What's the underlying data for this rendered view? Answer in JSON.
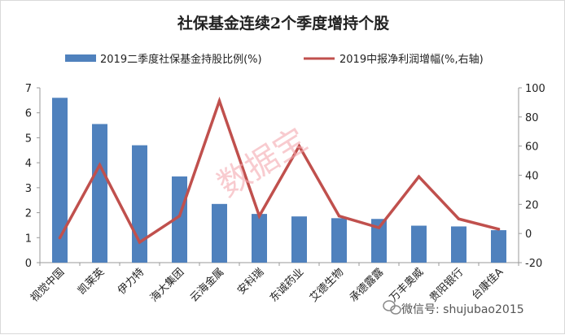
{
  "chart_data": {
    "type": "bar+line",
    "title": "社保基金连续2个季度增持个股",
    "categories": [
      "视觉中国",
      "凯莱英",
      "伊力特",
      "海大集团",
      "云海金属",
      "安科瑞",
      "东诚药业",
      "艾德生物",
      "承德露露",
      "万丰奥威",
      "贵阳银行",
      "台康佳A"
    ],
    "series": [
      {
        "name": "2019二季度社保基金持股比例(%)",
        "type": "bar",
        "axis": "left",
        "color": "#4f81bd",
        "values": [
          6.6,
          5.55,
          4.7,
          3.45,
          2.35,
          1.95,
          1.85,
          1.78,
          1.75,
          1.48,
          1.45,
          1.3
        ]
      },
      {
        "name": "2019中报净利润增幅(%,右轴)",
        "type": "line",
        "axis": "right",
        "color": "#c0504d",
        "values": [
          -3,
          47,
          -6,
          12,
          91,
          12,
          60,
          12,
          4,
          39,
          10,
          3
        ]
      }
    ],
    "y_left": {
      "min": 0,
      "max": 7,
      "ticks": [
        0,
        1,
        2,
        3,
        4,
        5,
        6,
        7
      ]
    },
    "y_right": {
      "min": -20,
      "max": 100,
      "ticks": [
        -20,
        0,
        20,
        40,
        60,
        80,
        100
      ]
    },
    "grid": false,
    "legend_position": "top"
  },
  "watermark": "数据宝",
  "wechat_handle": "微信号: shujubao2015",
  "wechat_icon": "wechat-icon"
}
